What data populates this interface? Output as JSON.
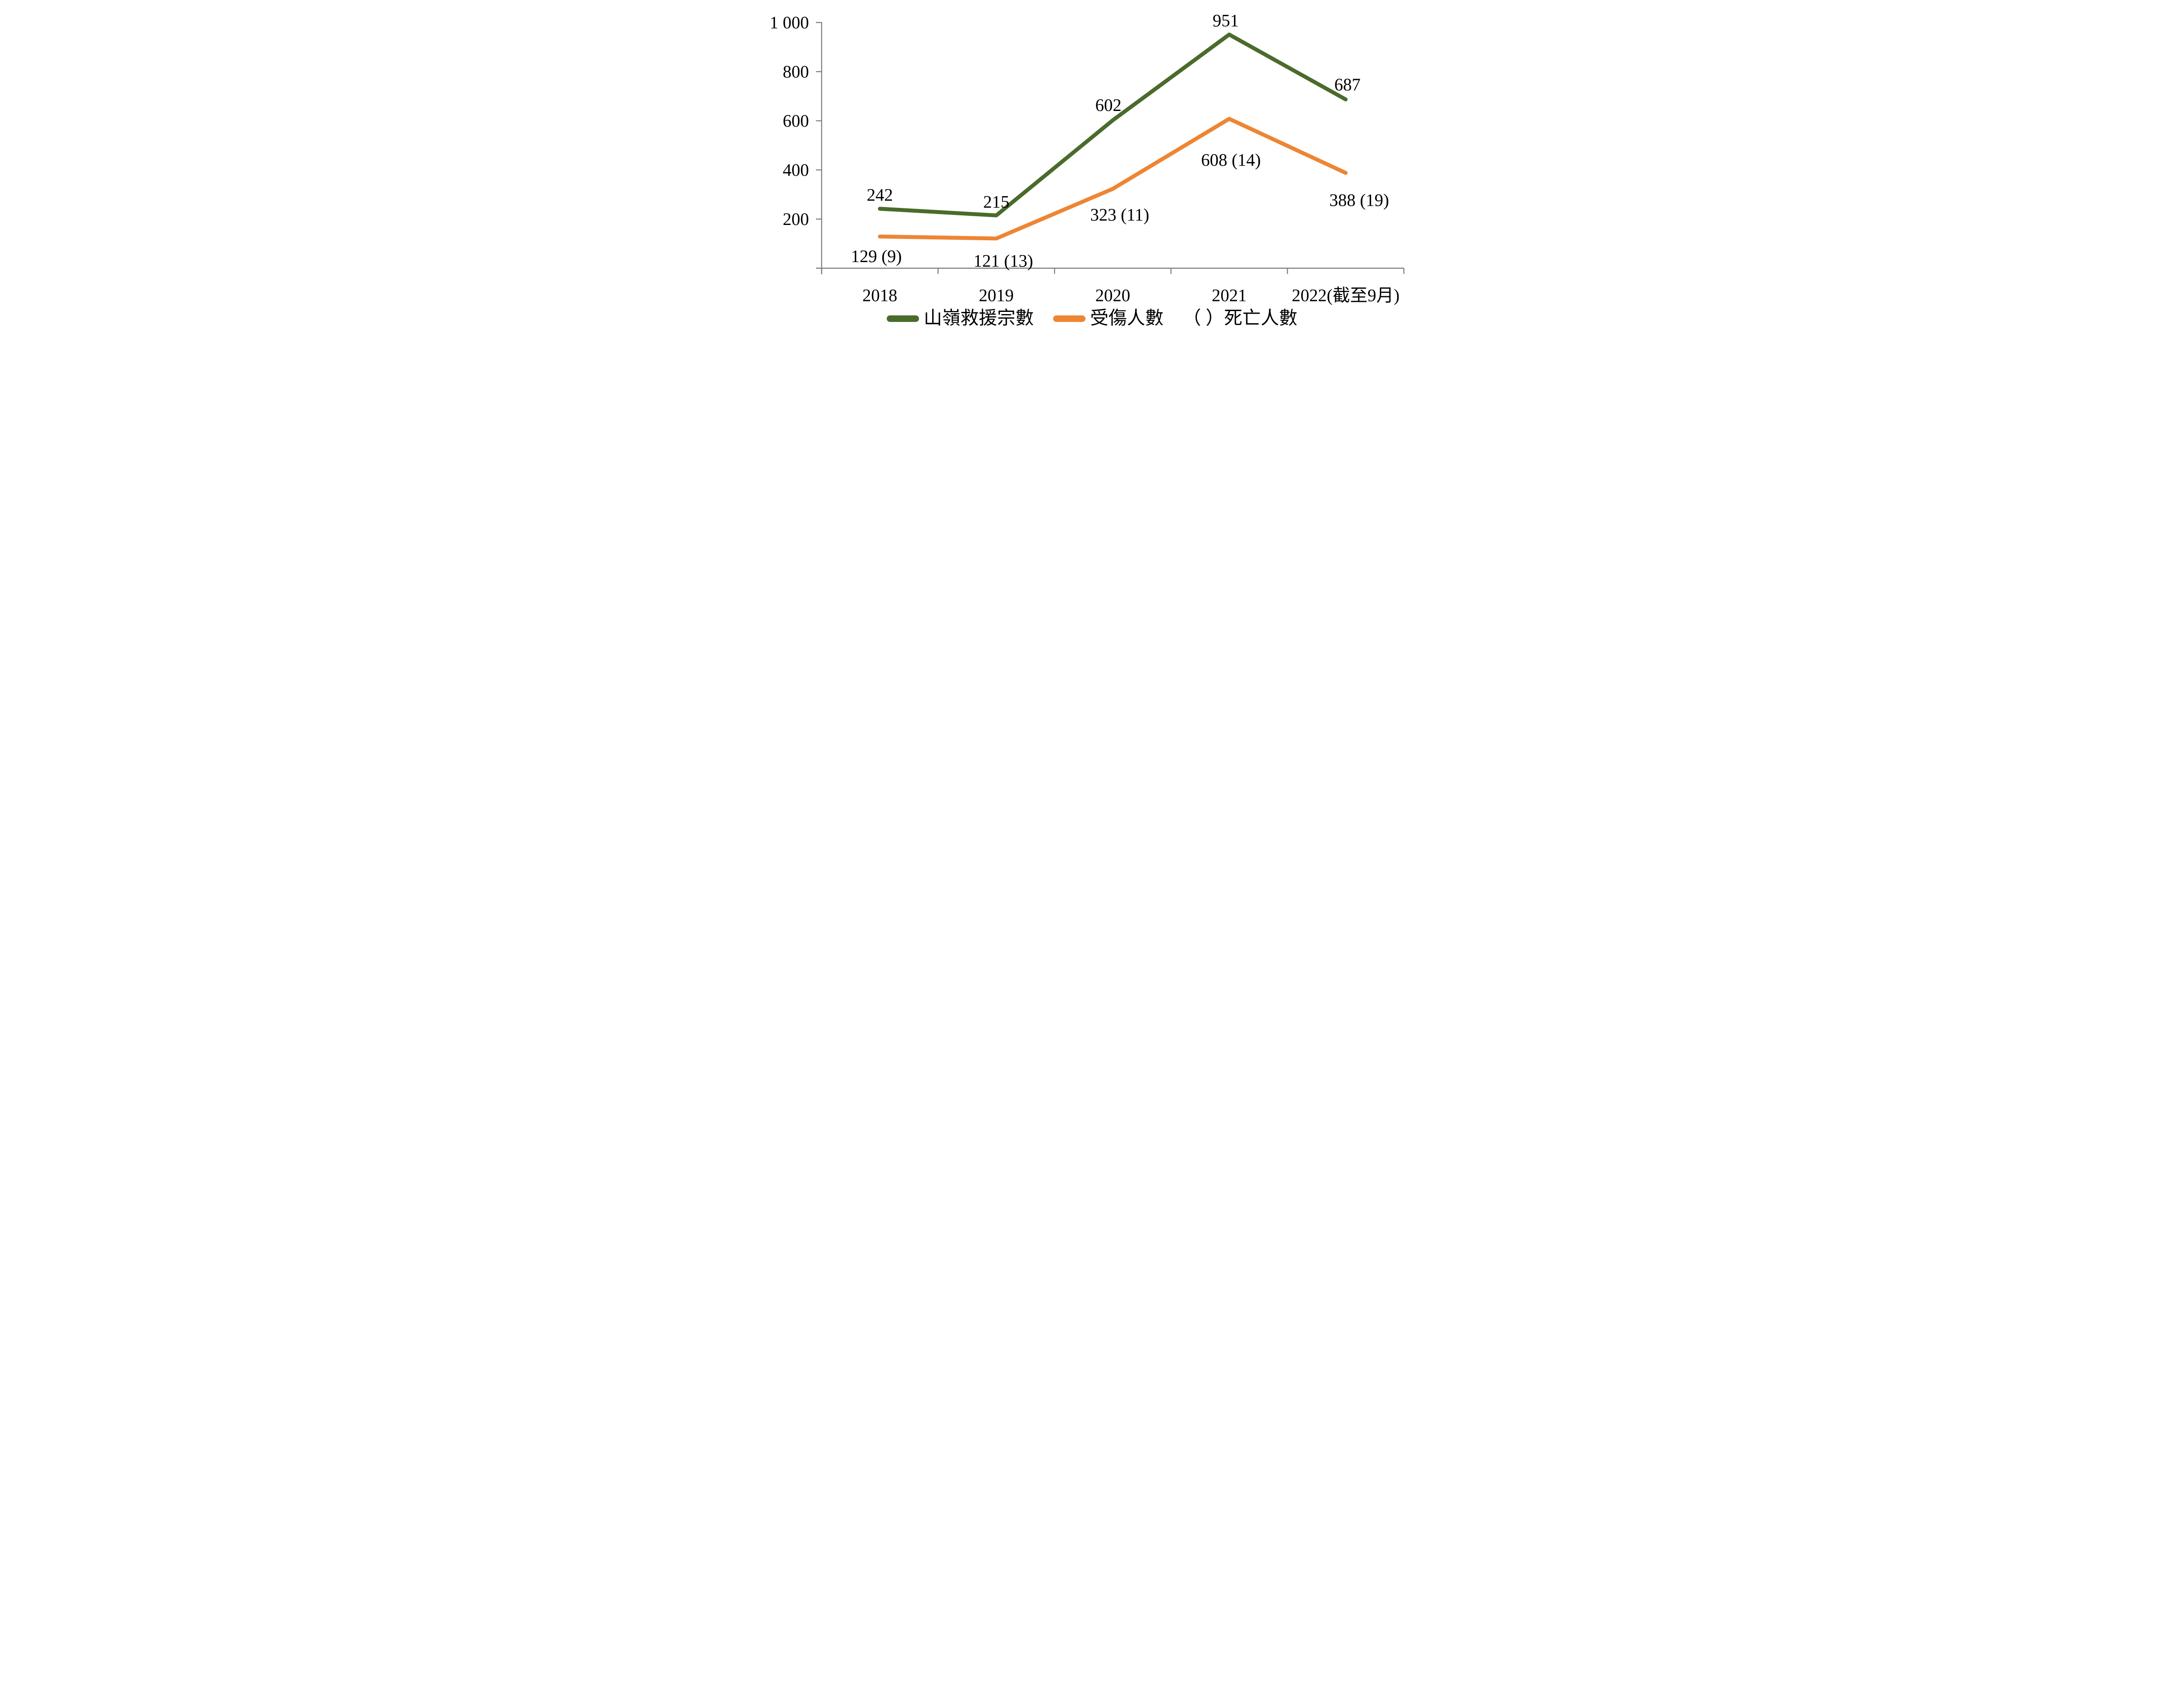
{
  "chart_data": {
    "type": "line",
    "title": "",
    "categories": [
      "2018",
      "2019",
      "2020",
      "2021",
      "2022(截至9月)"
    ],
    "series": [
      {
        "name": "山嶺救援宗數",
        "color": "#4A6B2B",
        "values": [
          242,
          215,
          602,
          951,
          687
        ],
        "labels": [
          "242",
          "215",
          "602",
          "951",
          "687"
        ],
        "label_position": "above"
      },
      {
        "name": "受傷人數",
        "color": "#EE8533",
        "values": [
          129,
          121,
          323,
          608,
          388
        ],
        "labels": [
          "129 (9)",
          "121 (13)",
          "323 (11)",
          "608 (14)",
          "388 (19)"
        ],
        "label_position": "below"
      }
    ],
    "y_axis": {
      "min": 0,
      "max": 1000,
      "tick_interval": 200,
      "ticks": [
        {
          "value": 200,
          "label": "200"
        },
        {
          "value": 400,
          "label": "400"
        },
        {
          "value": 600,
          "label": "600"
        },
        {
          "value": 800,
          "label": "800"
        },
        {
          "value": 1000,
          "label": "1 000"
        }
      ]
    },
    "grid": false,
    "axis_color": "#7F7F7F",
    "text_color": "#000000",
    "legend_position": "bottom",
    "legend": [
      {
        "swatch": "#4A6B2B",
        "label": "山嶺救援宗數"
      },
      {
        "swatch": "#EE8533",
        "label": "受傷人數"
      },
      {
        "swatch": null,
        "label": "（ ）死亡人數"
      }
    ]
  }
}
